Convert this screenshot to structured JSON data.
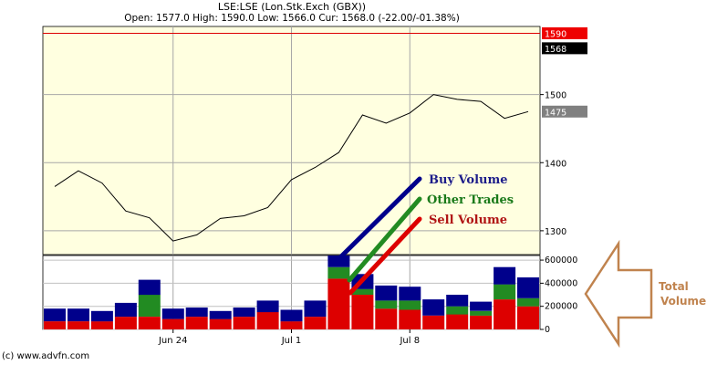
{
  "header": {
    "title": "LSE:LSE (Lon.Stk.Exch (GBX))",
    "ohlc": "Open: 1577.0 High: 1590.0 Low: 1566.0 Cur: 1568.0 (-22.00/-01.38%)"
  },
  "footer": {
    "copyright": "(c) www.advfn.com"
  },
  "annotations": {
    "buy_volume": "Buy Volume",
    "other_trades": "Other Trades",
    "sell_volume": "Sell Volume",
    "total_line1": "Total",
    "total_line2": "Volume"
  },
  "colors": {
    "plot_bg": "#ffffe0",
    "price_line": "#000000",
    "buy": "#00008b",
    "other": "#228b22",
    "sell": "#dd0000",
    "high_line": "#dd0000",
    "annotation_total": "#c0834e"
  },
  "chart_data": [
    {
      "type": "line",
      "title": "",
      "x_ticks": [
        "Jun 24",
        "Jul 1",
        "Jul 8"
      ],
      "y_ticks": [
        1300,
        1400,
        1500
      ],
      "ylim": [
        1265,
        1600
      ],
      "series": [
        {
          "values": [
            1365,
            1388,
            1370,
            1329,
            1319,
            1285,
            1294,
            1318,
            1322,
            1334,
            1375,
            1393,
            1415,
            1470,
            1458,
            1473,
            1500,
            1493,
            1490,
            1465,
            1475
          ]
        }
      ],
      "price_labels": [
        {
          "text": "1590",
          "value": 1590,
          "bg": "#ee0000"
        },
        {
          "text": "1568",
          "value": 1568,
          "bg": "#000000"
        },
        {
          "text": "1475",
          "value": 1475,
          "bg": "#808080"
        }
      ],
      "high_line": 1590,
      "grid": true
    },
    {
      "type": "bar",
      "stacked": true,
      "title": "",
      "x_ticks": [
        "Jun 24",
        "Jul 1",
        "Jul 8"
      ],
      "y_ticks": [
        "0",
        "200000",
        "400000",
        "600000"
      ],
      "ylim": [
        0,
        640000
      ],
      "series": [
        {
          "name": "Sell Volume",
          "values": [
            70000,
            70000,
            70000,
            110000,
            110000,
            90000,
            110000,
            90000,
            110000,
            150000,
            70000,
            110000,
            440000,
            300000,
            180000,
            170000,
            120000,
            130000,
            120000,
            260000,
            200000
          ]
        },
        {
          "name": "Other Trades",
          "values": [
            0,
            0,
            0,
            0,
            190000,
            0,
            0,
            0,
            0,
            0,
            0,
            0,
            100000,
            50000,
            70000,
            80000,
            0,
            70000,
            40000,
            130000,
            70000
          ]
        },
        {
          "name": "Buy Volume",
          "values": [
            110000,
            110000,
            90000,
            120000,
            130000,
            90000,
            80000,
            70000,
            80000,
            100000,
            100000,
            140000,
            100000,
            130000,
            130000,
            120000,
            140000,
            100000,
            80000,
            150000,
            180000
          ]
        }
      ],
      "grid": true
    }
  ]
}
